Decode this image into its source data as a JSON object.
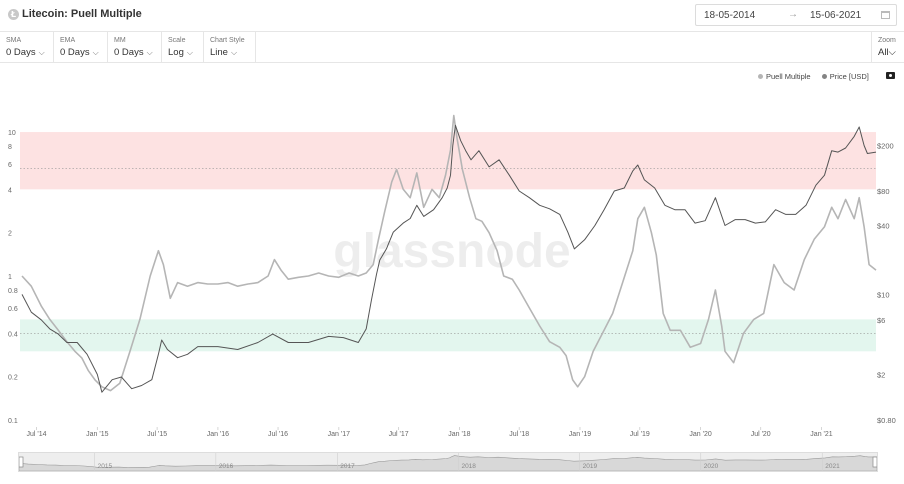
{
  "header": {
    "title": "Litecoin: Puell Multiple",
    "date_from": "18-05-2014",
    "date_to": "15-06-2021",
    "arrow": "→",
    "calendar_icon": "calendar-icon"
  },
  "controls": [
    {
      "label": "SMA",
      "value": "0 Days"
    },
    {
      "label": "EMA",
      "value": "0 Days"
    },
    {
      "label": "MM",
      "value": "0 Days"
    },
    {
      "label": "Scale",
      "value": "Log"
    },
    {
      "label": "Chart Style",
      "value": "Line"
    }
  ],
  "zoom": {
    "label": "Zoom",
    "value": "All"
  },
  "chevron": "⌵",
  "legend": {
    "puell": "Puell Multiple",
    "price": "Price [USD]",
    "puell_color": "#b5b5b5",
    "price_color": "#848484",
    "camera_icon": "camera-icon"
  },
  "watermark": "glassnode",
  "navigator": {
    "labels": [
      "2015",
      "2016",
      "2017",
      "2018",
      "2019",
      "2020",
      "2021"
    ]
  },
  "chart_data": {
    "type": "line",
    "title": "Litecoin: Puell Multiple",
    "x_ticks": [
      "Jul '14",
      "Jan '15",
      "Jul '15",
      "Jan '16",
      "Jul '16",
      "Jan '17",
      "Jul '17",
      "Jan '18",
      "Jul '18",
      "Jan '19",
      "Jul '19",
      "Jan '20",
      "Jul '20",
      "Jan '21"
    ],
    "y_left": {
      "scale": "log",
      "range": [
        0.1,
        14
      ],
      "ticks": [
        "0.1",
        "0.2",
        "0.4",
        "0.6",
        "0.8",
        "1",
        "2",
        "4",
        "6",
        "8",
        "10"
      ]
    },
    "y_right": {
      "scale": "log",
      "range": [
        0.8,
        400
      ],
      "ticks": [
        "$0.80",
        "$2",
        "$6",
        "$10",
        "$40",
        "$80",
        "$200"
      ]
    },
    "bands": [
      {
        "name": "high",
        "from": 4,
        "to": 10,
        "color": "#fde2e2",
        "midline": 5.6
      },
      {
        "name": "low",
        "from": 0.3,
        "to": 0.5,
        "color": "#e3f6ee",
        "midline": 0.4
      }
    ],
    "series": [
      {
        "name": "Puell Multiple",
        "axis": "left",
        "color": "#b5b5b5",
        "x": [
          "2014-05-18",
          "2014-06-15",
          "2014-07-15",
          "2014-08-10",
          "2014-09-05",
          "2014-10-01",
          "2014-10-25",
          "2014-11-15",
          "2014-12-05",
          "2014-12-25",
          "2015-01-15",
          "2015-02-10",
          "2015-03-10",
          "2015-04-10",
          "2015-05-10",
          "2015-06-10",
          "2015-07-05",
          "2015-07-20",
          "2015-08-10",
          "2015-09-01",
          "2015-10-01",
          "2015-11-01",
          "2015-12-01",
          "2016-01-01",
          "2016-02-01",
          "2016-03-01",
          "2016-04-01",
          "2016-05-01",
          "2016-06-01",
          "2016-06-20",
          "2016-07-10",
          "2016-08-01",
          "2016-09-01",
          "2016-10-01",
          "2016-11-01",
          "2016-12-01",
          "2017-01-01",
          "2017-02-01",
          "2017-03-01",
          "2017-03-25",
          "2017-04-15",
          "2017-05-01",
          "2017-05-20",
          "2017-06-10",
          "2017-06-25",
          "2017-07-15",
          "2017-08-05",
          "2017-08-25",
          "2017-09-15",
          "2017-10-10",
          "2017-11-01",
          "2017-11-20",
          "2017-12-05",
          "2017-12-15",
          "2017-12-25",
          "2018-01-10",
          "2018-02-01",
          "2018-02-20",
          "2018-03-10",
          "2018-04-01",
          "2018-04-25",
          "2018-05-15",
          "2018-06-10",
          "2018-07-01",
          "2018-08-01",
          "2018-09-01",
          "2018-10-01",
          "2018-11-01",
          "2018-11-20",
          "2018-12-10",
          "2018-12-25",
          "2019-01-15",
          "2019-02-10",
          "2019-03-10",
          "2019-04-10",
          "2019-05-10",
          "2019-06-10",
          "2019-06-25",
          "2019-07-15",
          "2019-08-05",
          "2019-08-20",
          "2019-09-10",
          "2019-10-01",
          "2019-11-01",
          "2019-12-01",
          "2020-01-01",
          "2020-01-25",
          "2020-02-15",
          "2020-03-05",
          "2020-03-15",
          "2020-04-10",
          "2020-05-10",
          "2020-06-10",
          "2020-07-10",
          "2020-08-10",
          "2020-09-10",
          "2020-10-10",
          "2020-11-10",
          "2020-12-10",
          "2021-01-10",
          "2021-02-01",
          "2021-02-20",
          "2021-03-15",
          "2021-04-10",
          "2021-04-25",
          "2021-05-10",
          "2021-05-25",
          "2021-06-15"
        ],
        "y": [
          1.0,
          0.85,
          0.62,
          0.5,
          0.42,
          0.35,
          0.3,
          0.27,
          0.22,
          0.19,
          0.17,
          0.16,
          0.18,
          0.3,
          0.5,
          1.0,
          1.5,
          1.2,
          0.7,
          0.9,
          0.85,
          0.9,
          0.88,
          0.88,
          0.9,
          0.85,
          0.88,
          0.9,
          1.0,
          1.3,
          1.1,
          0.95,
          0.98,
          1.0,
          1.05,
          1.0,
          0.98,
          1.05,
          1.0,
          1.05,
          1.2,
          1.8,
          2.8,
          4.5,
          5.5,
          4.0,
          3.5,
          5.2,
          3.0,
          4.0,
          3.5,
          5.0,
          7.5,
          13.0,
          9.0,
          5.5,
          3.5,
          2.5,
          2.4,
          2.0,
          1.5,
          1.0,
          0.95,
          0.8,
          0.6,
          0.45,
          0.35,
          0.32,
          0.28,
          0.19,
          0.17,
          0.2,
          0.3,
          0.4,
          0.55,
          0.9,
          1.5,
          2.5,
          3.0,
          2.0,
          1.4,
          0.55,
          0.42,
          0.42,
          0.32,
          0.34,
          0.5,
          0.8,
          0.45,
          0.3,
          0.25,
          0.4,
          0.5,
          0.55,
          1.2,
          0.9,
          0.8,
          1.3,
          1.8,
          2.2,
          3.0,
          2.5,
          3.4,
          2.5,
          3.5,
          2.2,
          1.2,
          1.1
        ]
      },
      {
        "name": "Price [USD]",
        "axis": "right",
        "color": "#555555",
        "x": [
          "2014-05-18",
          "2014-06-15",
          "2014-07-15",
          "2014-08-10",
          "2014-09-05",
          "2014-10-01",
          "2014-11-01",
          "2014-12-01",
          "2015-01-01",
          "2015-01-15",
          "2015-02-15",
          "2015-03-15",
          "2015-04-15",
          "2015-05-15",
          "2015-06-15",
          "2015-07-05",
          "2015-07-15",
          "2015-08-01",
          "2015-09-01",
          "2015-10-01",
          "2015-11-01",
          "2015-12-01",
          "2016-01-01",
          "2016-03-01",
          "2016-05-01",
          "2016-06-15",
          "2016-08-01",
          "2016-10-01",
          "2016-12-01",
          "2017-01-15",
          "2017-03-01",
          "2017-03-25",
          "2017-04-10",
          "2017-04-25",
          "2017-05-05",
          "2017-05-25",
          "2017-06-15",
          "2017-07-15",
          "2017-08-05",
          "2017-08-25",
          "2017-09-15",
          "2017-10-15",
          "2017-11-10",
          "2017-11-25",
          "2017-12-05",
          "2017-12-12",
          "2017-12-20",
          "2018-01-05",
          "2018-01-20",
          "2018-02-05",
          "2018-03-01",
          "2018-04-01",
          "2018-05-01",
          "2018-06-01",
          "2018-07-01",
          "2018-08-01",
          "2018-09-01",
          "2018-10-01",
          "2018-11-01",
          "2018-11-25",
          "2018-12-15",
          "2019-01-15",
          "2019-02-15",
          "2019-03-15",
          "2019-04-15",
          "2019-05-15",
          "2019-06-10",
          "2019-06-25",
          "2019-07-15",
          "2019-08-15",
          "2019-09-15",
          "2019-10-15",
          "2019-11-15",
          "2019-12-15",
          "2020-01-15",
          "2020-02-15",
          "2020-03-15",
          "2020-04-15",
          "2020-05-15",
          "2020-06-15",
          "2020-07-15",
          "2020-08-15",
          "2020-09-15",
          "2020-10-15",
          "2020-11-15",
          "2020-12-15",
          "2021-01-10",
          "2021-02-01",
          "2021-02-20",
          "2021-03-15",
          "2021-04-10",
          "2021-04-25",
          "2021-05-10",
          "2021-05-20",
          "2021-06-15"
        ],
        "y": [
          10,
          7,
          6,
          5,
          4.5,
          3.8,
          3.8,
          3.0,
          2.0,
          1.4,
          1.8,
          1.9,
          1.5,
          1.6,
          1.8,
          3.0,
          4.0,
          3.3,
          2.8,
          3.0,
          3.5,
          3.5,
          3.5,
          3.3,
          3.8,
          4.5,
          3.8,
          3.8,
          4.3,
          4.2,
          3.8,
          5.0,
          9.0,
          15,
          20,
          25,
          35,
          42,
          46,
          60,
          48,
          55,
          70,
          85,
          110,
          200,
          300,
          220,
          180,
          150,
          180,
          130,
          150,
          110,
          80,
          70,
          60,
          56,
          50,
          35,
          25,
          30,
          40,
          55,
          80,
          85,
          120,
          135,
          100,
          85,
          60,
          55,
          55,
          42,
          44,
          70,
          40,
          45,
          45,
          42,
          43,
          55,
          50,
          50,
          60,
          90,
          110,
          180,
          175,
          190,
          240,
          290,
          200,
          170,
          175
        ]
      }
    ]
  }
}
